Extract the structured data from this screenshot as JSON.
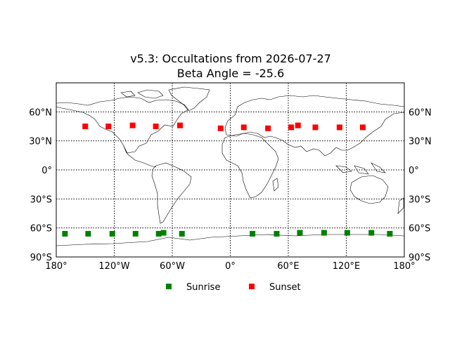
{
  "chart_data": {
    "type": "scatter",
    "title": "v5.3: Occultations from 2026-07-27",
    "subtitle": "Beta Angle = -25.6",
    "projection": "equirectangular",
    "xlim": [
      -180,
      180
    ],
    "ylim": [
      -90,
      90
    ],
    "x_ticks": [
      {
        "value": -180,
        "label": "180°"
      },
      {
        "value": -120,
        "label": "120°W"
      },
      {
        "value": -60,
        "label": "60°W"
      },
      {
        "value": 0,
        "label": "0°"
      },
      {
        "value": 60,
        "label": "60°E"
      },
      {
        "value": 120,
        "label": "120°E"
      },
      {
        "value": 180,
        "label": "180°"
      }
    ],
    "y_ticks": [
      {
        "value": 60,
        "label": "60°N"
      },
      {
        "value": 30,
        "label": "30°N"
      },
      {
        "value": 0,
        "label": "0°"
      },
      {
        "value": -30,
        "label": "30°S"
      },
      {
        "value": -60,
        "label": "60°S"
      },
      {
        "value": -90,
        "label": "90°S"
      }
    ],
    "grid": true,
    "legend_position": "bottom-center",
    "series": [
      {
        "name": "Sunrise",
        "color": "#008000",
        "marker": "square",
        "points": [
          {
            "lon": -171,
            "lat": -66
          },
          {
            "lon": -147,
            "lat": -66
          },
          {
            "lon": -122,
            "lat": -66
          },
          {
            "lon": -98,
            "lat": -66
          },
          {
            "lon": -74,
            "lat": -66
          },
          {
            "lon": -69,
            "lat": -65
          },
          {
            "lon": -50,
            "lat": -66
          },
          {
            "lon": 23,
            "lat": -66
          },
          {
            "lon": 48,
            "lat": -66
          },
          {
            "lon": 72,
            "lat": -65
          },
          {
            "lon": 97,
            "lat": -65
          },
          {
            "lon": 121,
            "lat": -65
          },
          {
            "lon": 146,
            "lat": -65
          },
          {
            "lon": 165,
            "lat": -66
          }
        ]
      },
      {
        "name": "Sunset",
        "color": "#ff0000",
        "marker": "square",
        "points": [
          {
            "lon": -150,
            "lat": 45
          },
          {
            "lon": -126,
            "lat": 45
          },
          {
            "lon": -101,
            "lat": 46
          },
          {
            "lon": -77,
            "lat": 45
          },
          {
            "lon": -52,
            "lat": 46
          },
          {
            "lon": -10,
            "lat": 43
          },
          {
            "lon": 14,
            "lat": 44
          },
          {
            "lon": 39,
            "lat": 43
          },
          {
            "lon": 63,
            "lat": 44
          },
          {
            "lon": 70,
            "lat": 46
          },
          {
            "lon": 88,
            "lat": 44
          },
          {
            "lon": 113,
            "lat": 44
          },
          {
            "lon": 137,
            "lat": 44
          }
        ]
      }
    ]
  },
  "colors": {
    "sunrise": "#008000",
    "sunset": "#ff0000",
    "axes": "#000000"
  }
}
